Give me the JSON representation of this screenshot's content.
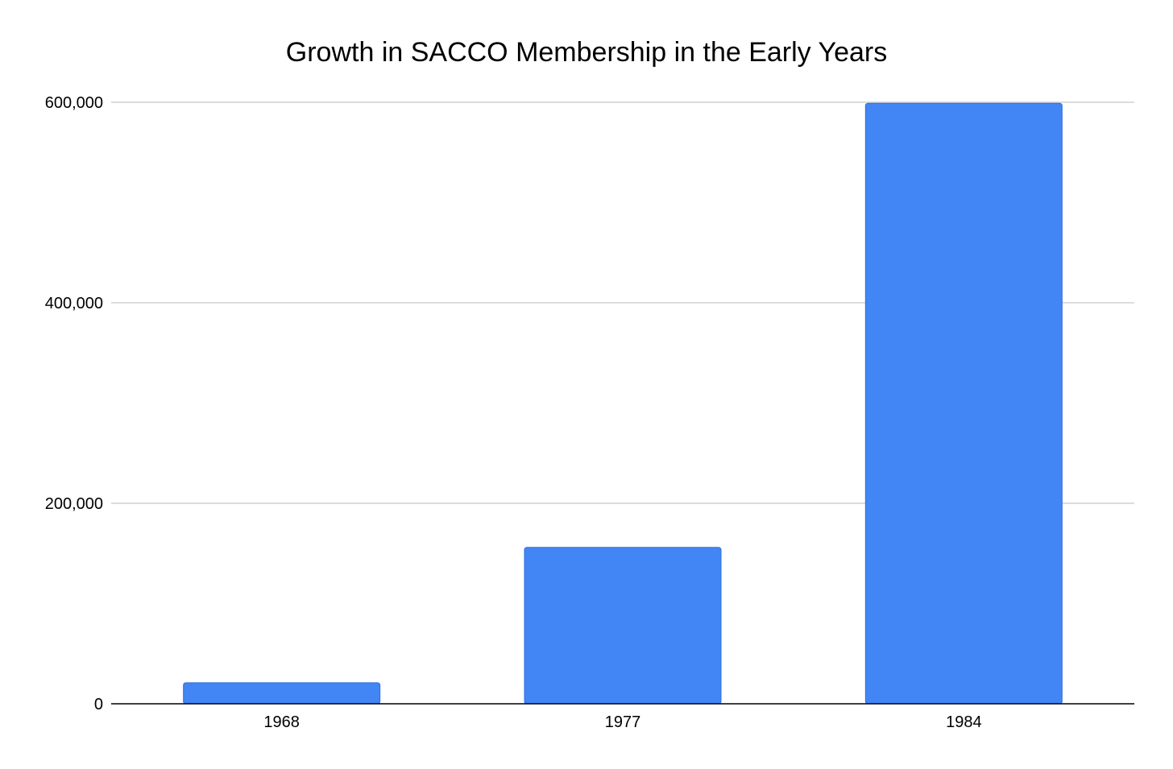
{
  "chart_data": {
    "type": "bar",
    "title": "Growth in SACCO Membership in the Early Years",
    "xlabel": "",
    "ylabel": "",
    "categories": [
      "1968",
      "1977",
      "1984"
    ],
    "values": [
      21000,
      156000,
      599000
    ],
    "ylim": [
      0,
      600000
    ],
    "yticks": [
      0,
      200000,
      400000,
      600000
    ],
    "ytick_labels": [
      "0",
      "200,000",
      "400,000",
      "600,000"
    ],
    "grid": true,
    "legend": "none",
    "colors": {
      "bar": "#4285f4",
      "bar_edge": "#2f6fe0",
      "grid": "#c7c7c7",
      "axis": "#000000",
      "text": "#000000"
    }
  }
}
